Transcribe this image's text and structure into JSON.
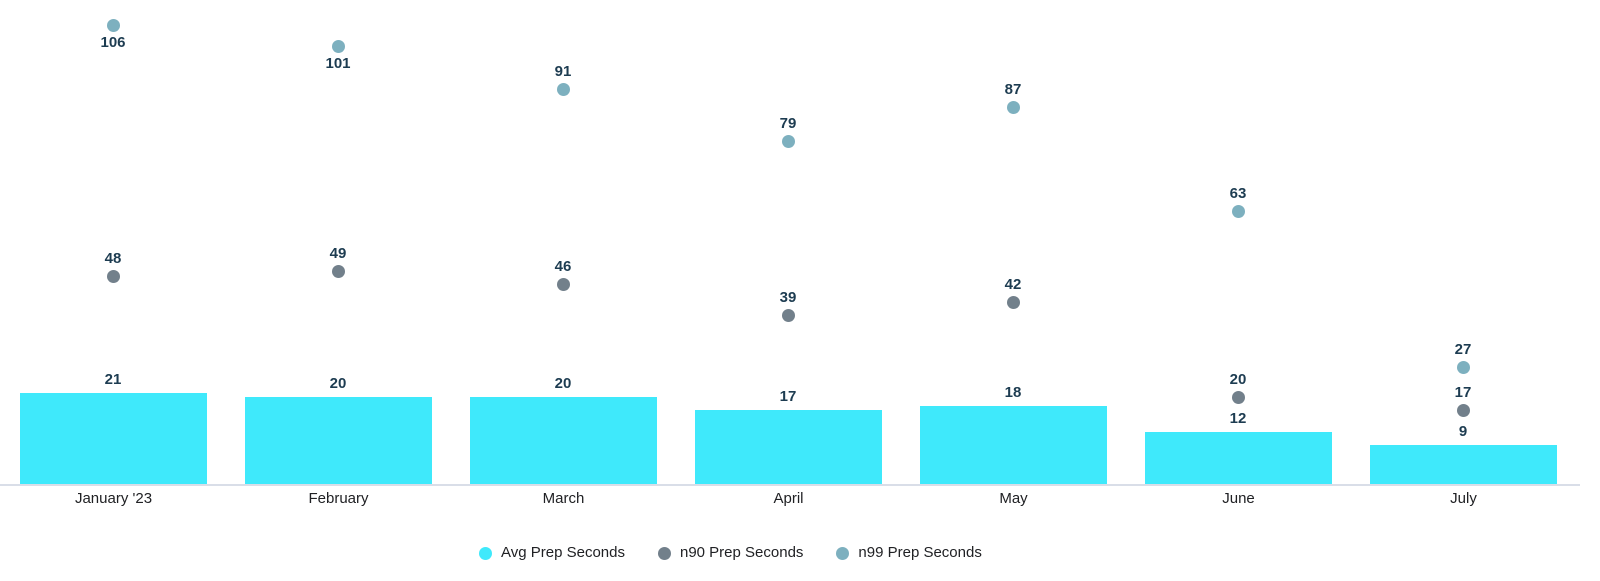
{
  "chart_data": {
    "type": "bar",
    "title": "",
    "xlabel": "",
    "ylabel": "",
    "categories": [
      "January '23",
      "February",
      "March",
      "April",
      "May",
      "June",
      "July"
    ],
    "series": [
      {
        "name": "Avg Prep Seconds",
        "render": "bar",
        "color": "#3FE9FB",
        "values": [
          21,
          20,
          20,
          17,
          18,
          12,
          9
        ]
      },
      {
        "name": "n90 Prep Seconds",
        "render": "scatter",
        "color": "#72808B",
        "values": [
          48,
          49,
          46,
          39,
          42,
          20,
          17
        ]
      },
      {
        "name": "n99 Prep Seconds",
        "render": "scatter",
        "color": "#7DB0BF",
        "values": [
          106,
          101,
          91,
          79,
          87,
          63,
          27
        ]
      }
    ],
    "ylim": [
      0,
      112
    ],
    "grid": false,
    "y_axis_visible": false,
    "legend_position": "bottom",
    "data_labels_visible": true,
    "annotation_color": "#1D3C51",
    "axis_line_color": "#d9dee8",
    "axis_text_color": "#202124"
  },
  "legend": {
    "items": [
      {
        "label": "Avg Prep Seconds",
        "color": "#3FE9FB"
      },
      {
        "label": "n90 Prep Seconds",
        "color": "#72808B"
      },
      {
        "label": "n99 Prep Seconds",
        "color": "#7DB0BF"
      }
    ]
  }
}
